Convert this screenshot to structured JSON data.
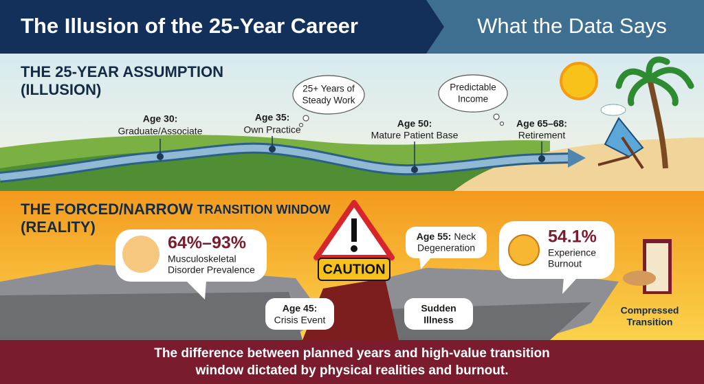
{
  "header": {
    "left_title": "The Illusion of the 25-Year Career",
    "right_title": "What the Data Says"
  },
  "assumption": {
    "title_line1": "THE 25-YEAR ASSUMPTION",
    "title_line2": "(ILLUSION)",
    "milestones": [
      {
        "age": "Age 30:",
        "label": "Graduate/Associate"
      },
      {
        "age": "Age 35:",
        "label": "Own Practice"
      },
      {
        "age": "Age 50:",
        "label": "Mature Patient Base"
      },
      {
        "age": "Age 65–68:",
        "label": "Retirement"
      }
    ],
    "thoughts": [
      {
        "lines": [
          "25+ Years of",
          "Steady Work"
        ]
      },
      {
        "lines": [
          "Predictable",
          "Income"
        ]
      }
    ]
  },
  "reality": {
    "title_big": "THE FORCED/NARROW",
    "title_small": "TRANSITION WINDOW",
    "title_line2": "(REALITY)",
    "msk": {
      "stat": "64%–93%",
      "lines": [
        "Musculoskeletal",
        "Disorder Prevalence"
      ]
    },
    "burnout": {
      "stat": "54.1%",
      "lines": [
        "Experience",
        "Burnout"
      ]
    },
    "caution": "CAUTION",
    "neck": {
      "age": "Age 55:",
      "rest": "Neck",
      "line2": "Degeneration"
    },
    "crisis": {
      "age": "Age 45:",
      "line2": "Crisis Event"
    },
    "illness": {
      "lines": [
        "Sudden",
        "Illness"
      ]
    },
    "exit": {
      "lines": [
        "Compressed",
        "Transition"
      ]
    }
  },
  "footer": {
    "lines": [
      "The difference between planned years and high-value transition",
      "window dictated by physical realities and burnout."
    ]
  }
}
